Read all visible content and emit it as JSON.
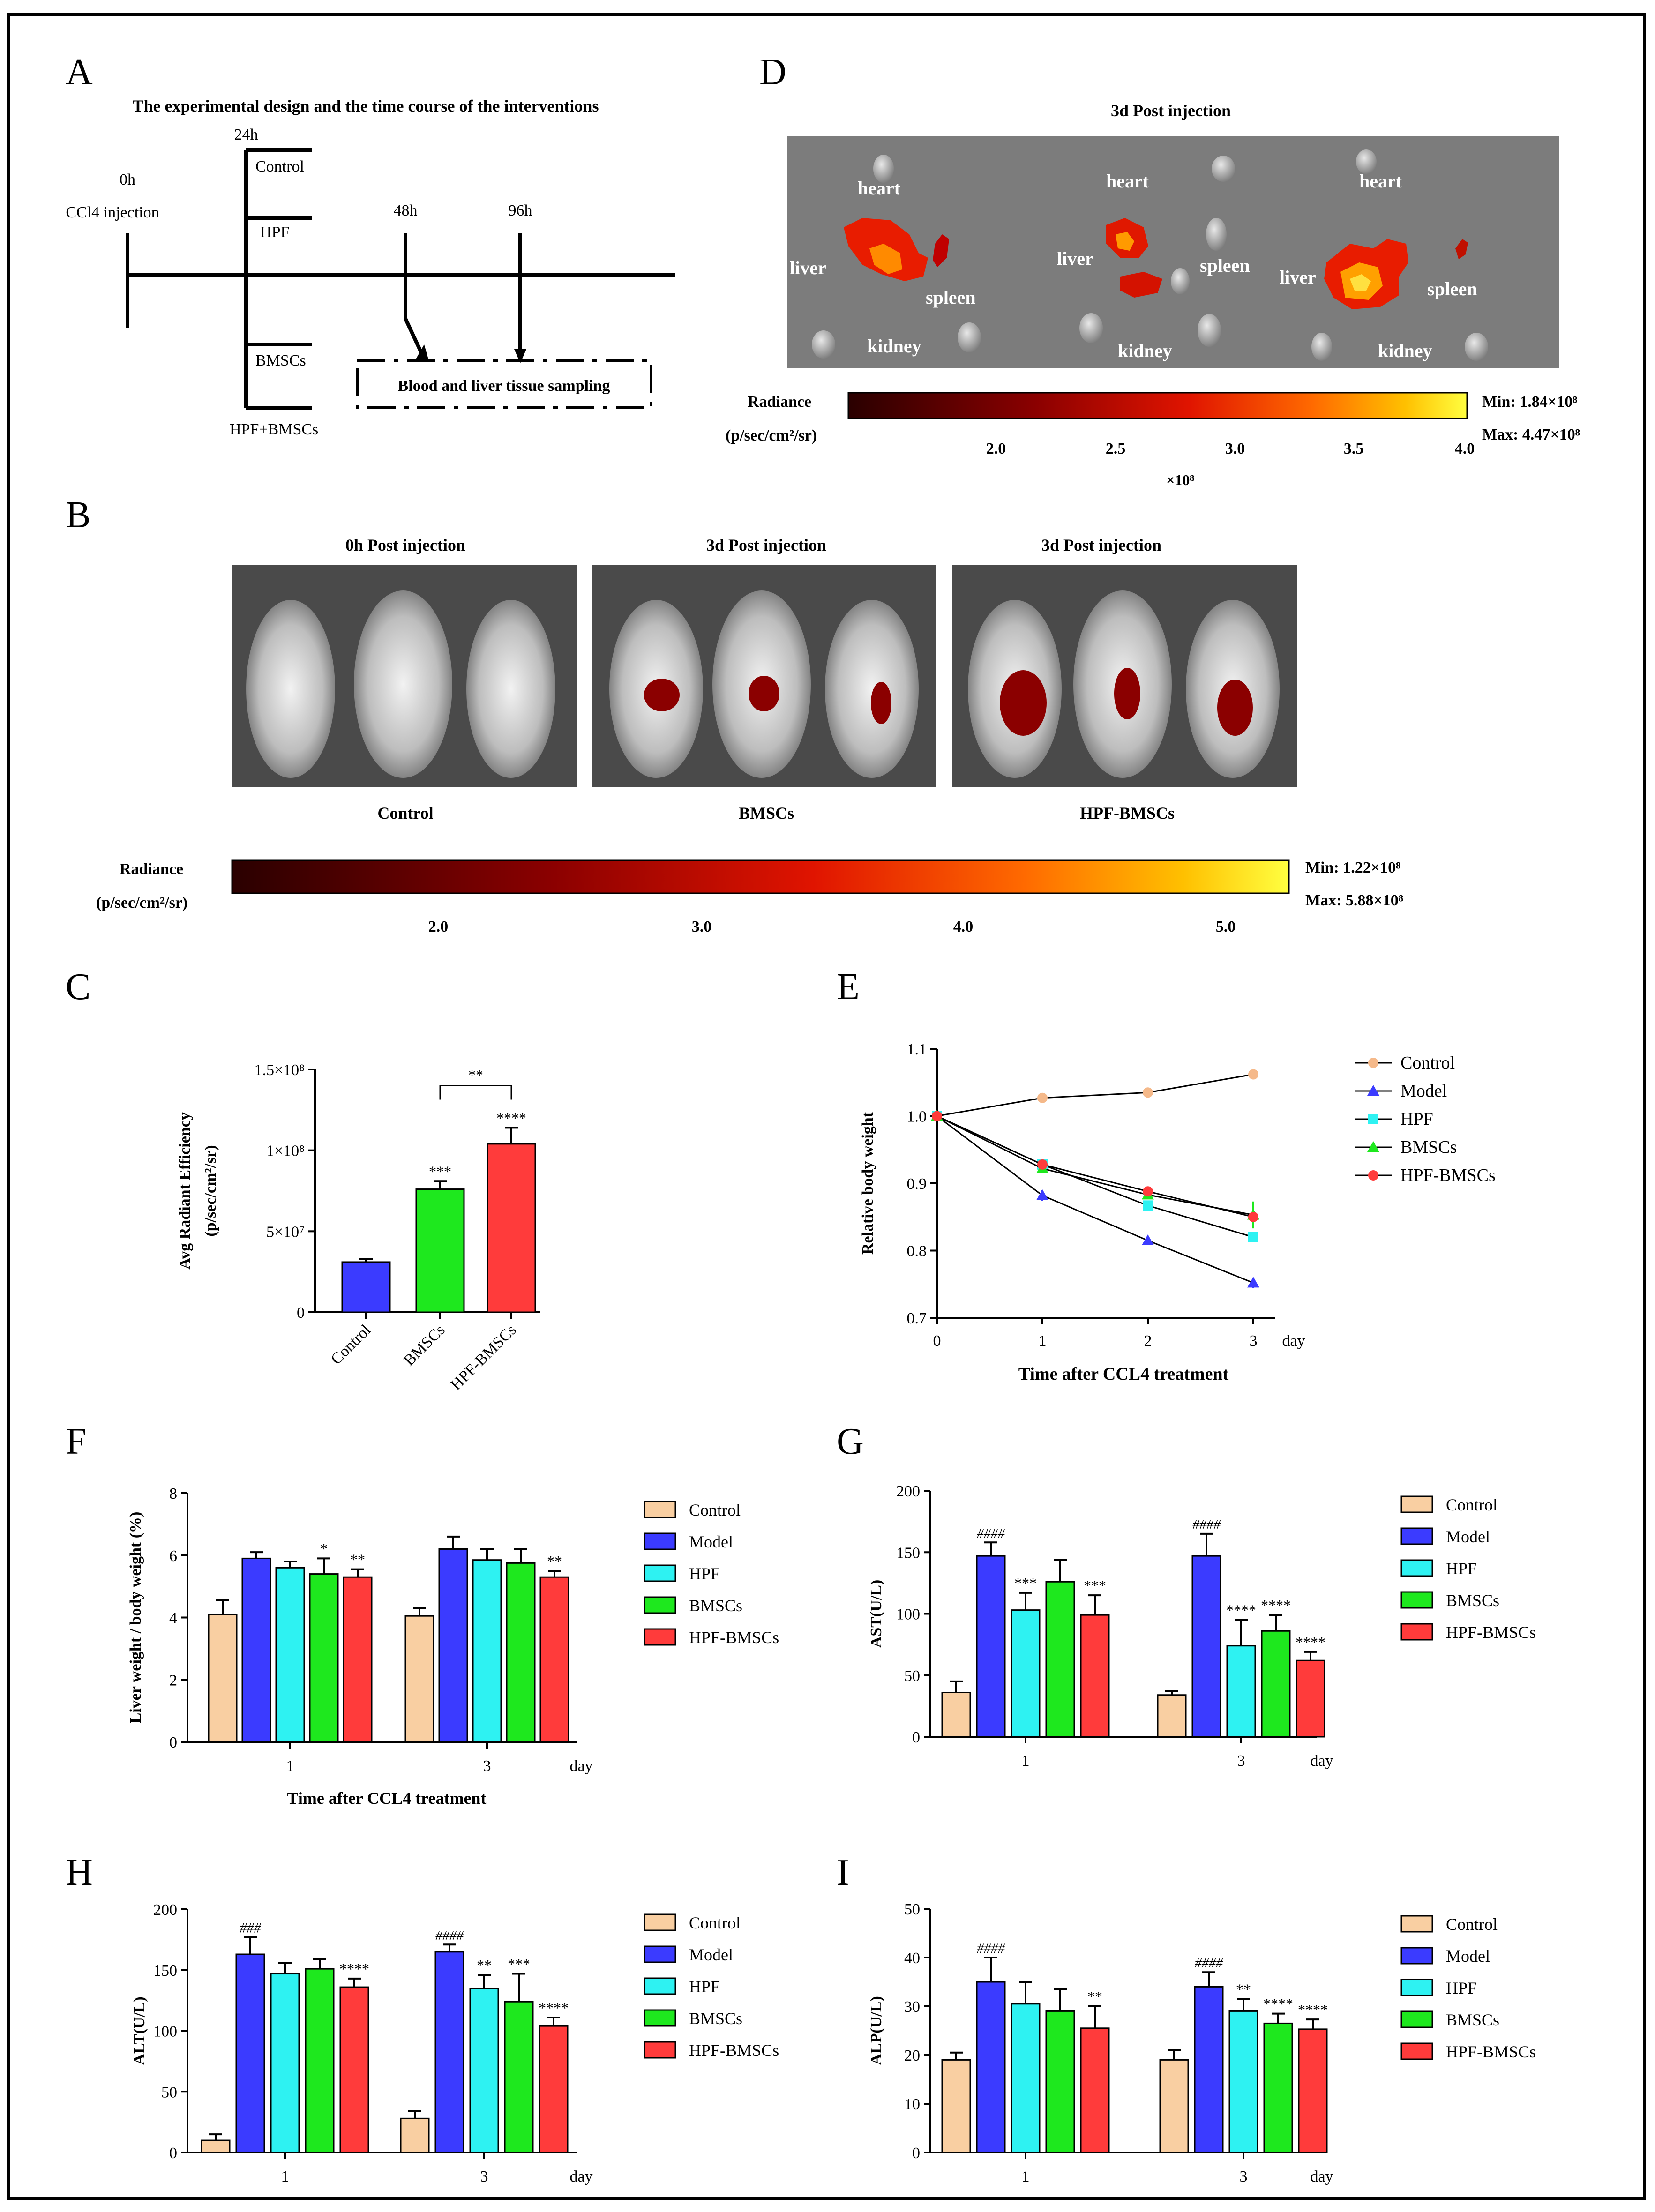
{
  "panels": {
    "A": {
      "letter": "A",
      "title": "The experimental design and the time course of the interventions",
      "t0": "0h",
      "ccl4": "CCl4 injection",
      "t24": "24h",
      "g_control": "Control",
      "g_hpf": "HPF",
      "g_bmscs": "BMSCs",
      "g_combo": "HPF+BMSCs",
      "t48": "48h",
      "t96": "96h",
      "sampling": "Blood and liver tissue sampling"
    },
    "B": {
      "letter": "B",
      "image_titles": [
        "0h Post injection",
        "3d Post injection",
        "3d Post injection"
      ],
      "group_labels": [
        "Control",
        "BMSCs",
        "HPF-BMSCs"
      ],
      "radiance": "Radiance",
      "unit": "(p/sec/cm²/sr)",
      "ticks": [
        "2.0",
        "3.0",
        "4.0",
        "5.0"
      ],
      "min": "Min: 1.22×10⁸",
      "max": "Max: 5.88×10⁸"
    },
    "C": {
      "letter": "C"
    },
    "D": {
      "letter": "D",
      "title": "3d Post injection",
      "organ_labels": [
        "heart",
        "heart",
        "heart",
        "liver",
        "liver",
        "liver",
        "spleen",
        "spleen",
        "spleen",
        "kidney",
        "kidney",
        "kidney"
      ],
      "radiance": "Radiance",
      "unit": "(p/sec/cm²/sr)",
      "ticks": [
        "2.0",
        "2.5",
        "3.0",
        "3.5",
        "4.0"
      ],
      "multiplier": "×10⁸",
      "min": "Min: 1.84×10⁸",
      "max": "Max: 4.47×10⁸"
    },
    "E": {
      "letter": "E"
    },
    "F": {
      "letter": "F"
    },
    "G": {
      "letter": "G"
    },
    "H": {
      "letter": "H"
    },
    "I": {
      "letter": "I"
    }
  },
  "colors": {
    "Control": "#f9cfa2",
    "Model": "#3b3bff",
    "HPF": "#2ef2f2",
    "BMSCs": "#1ee81e",
    "HPF-BMSCs": "#ff3b3b",
    "ControlLine": "#f5b98a"
  },
  "chart_data": [
    {
      "id": "C",
      "type": "bar",
      "ylabel": "Avg Radiant Efficiency\n(p/sec/cm²/sr)",
      "categories": [
        "Control",
        "BMSCs",
        "HPF-BMSCs"
      ],
      "values": [
        31000000,
        76000000,
        104000000
      ],
      "errors": [
        2000000,
        5000000,
        10000000
      ],
      "ylim": [
        0,
        150000000
      ],
      "yticks": [
        0,
        50000000,
        100000000,
        150000000
      ],
      "ytick_labels": [
        "0",
        "5×10⁷",
        "1×10⁸",
        "1.5×10⁸"
      ],
      "annotations": [
        "",
        "***",
        "****"
      ],
      "bracket": {
        "from": 1,
        "to": 2,
        "label": "**"
      }
    },
    {
      "id": "E",
      "type": "line",
      "xlabel": "Time after CCL4 treatment",
      "ylabel": "Relative body weight",
      "x": [
        0,
        1,
        2,
        3
      ],
      "xtick_suffix": "day",
      "ylim": [
        0.7,
        1.1
      ],
      "yticks": [
        "0.7",
        "0.8",
        "0.9",
        "1.0",
        "1.1"
      ],
      "series": [
        {
          "name": "Control",
          "values": [
            1.0,
            1.027,
            1.035,
            1.062
          ],
          "errors": [
            0,
            0.006,
            0.005,
            0.007
          ],
          "marker": "circle"
        },
        {
          "name": "Model",
          "values": [
            1.0,
            0.882,
            0.815,
            0.752
          ],
          "errors": [
            0,
            0.008,
            0.004,
            0.008
          ],
          "marker": "triangle-down"
        },
        {
          "name": "HPF",
          "values": [
            1.0,
            0.928,
            0.867,
            0.82
          ],
          "errors": [
            0,
            0.008,
            0.005,
            0.005
          ],
          "marker": "square"
        },
        {
          "name": "BMSCs",
          "values": [
            1.0,
            0.922,
            0.883,
            0.853
          ],
          "errors": [
            0,
            0.007,
            0.006,
            0.02
          ],
          "marker": "triangle"
        },
        {
          "name": "HPF-BMSCs",
          "values": [
            1.0,
            0.928,
            0.888,
            0.85
          ],
          "errors": [
            0,
            0.005,
            0.005,
            0.005
          ],
          "marker": "circle"
        }
      ]
    },
    {
      "id": "F",
      "type": "bar",
      "xlabel": "Time after CCL4 treatment",
      "ylabel": "Liver weight / body weight (%)",
      "groups": [
        "1",
        "3"
      ],
      "xtick_suffix": "day",
      "series_names": [
        "Control",
        "Model",
        "HPF",
        "BMSCs",
        "HPF-BMSCs"
      ],
      "values": [
        [
          4.1,
          5.9,
          5.6,
          5.4,
          5.3
        ],
        [
          4.05,
          6.2,
          5.85,
          5.75,
          5.3
        ]
      ],
      "errors": [
        [
          0.45,
          0.2,
          0.2,
          0.5,
          0.25
        ],
        [
          0.25,
          0.4,
          0.35,
          0.45,
          0.2
        ]
      ],
      "annotations": [
        [
          "",
          "",
          "",
          "*",
          "**"
        ],
        [
          "",
          "",
          "",
          "",
          "**"
        ]
      ],
      "ylim": [
        0,
        8
      ],
      "yticks": [
        "0",
        "2",
        "4",
        "6",
        "8"
      ]
    },
    {
      "id": "G",
      "type": "bar",
      "xlabel": "",
      "ylabel": "AST(U/L)",
      "groups": [
        "1",
        "3"
      ],
      "xtick_suffix": "day",
      "series_names": [
        "Control",
        "Model",
        "HPF",
        "BMSCs",
        "HPF-BMSCs"
      ],
      "values": [
        [
          36,
          147,
          103,
          126,
          99
        ],
        [
          34,
          147,
          74,
          86,
          62
        ]
      ],
      "errors": [
        [
          9,
          11,
          14,
          18,
          16
        ],
        [
          3,
          18,
          21,
          13,
          7
        ]
      ],
      "annotations": [
        [
          "",
          "####",
          "***",
          "",
          "***"
        ],
        [
          "",
          "####",
          "****",
          "****",
          "****"
        ]
      ],
      "ylim": [
        0,
        200
      ],
      "yticks": [
        "0",
        "50",
        "100",
        "150",
        "200"
      ]
    },
    {
      "id": "H",
      "type": "bar",
      "xlabel": "",
      "ylabel": "ALT(U/L)",
      "groups": [
        "1",
        "3"
      ],
      "xtick_suffix": "day",
      "series_names": [
        "Control",
        "Model",
        "HPF",
        "BMSCs",
        "HPF-BMSCs"
      ],
      "values": [
        [
          10,
          163,
          147,
          151,
          136
        ],
        [
          28,
          165,
          135,
          124,
          104
        ]
      ],
      "errors": [
        [
          5,
          14,
          9,
          8,
          7
        ],
        [
          6,
          6,
          11,
          23,
          7
        ]
      ],
      "annotations": [
        [
          "",
          "###",
          "",
          "",
          "****"
        ],
        [
          "",
          "####",
          "**",
          "***",
          "****"
        ]
      ],
      "ylim": [
        0,
        200
      ],
      "yticks": [
        "0",
        "50",
        "100",
        "150",
        "200"
      ]
    },
    {
      "id": "I",
      "type": "bar",
      "xlabel": "",
      "ylabel": "ALP(U/L)",
      "groups": [
        "1",
        "3"
      ],
      "xtick_suffix": "day",
      "series_names": [
        "Control",
        "Model",
        "HPF",
        "BMSCs",
        "HPF-BMSCs"
      ],
      "values": [
        [
          19,
          35,
          30.5,
          29,
          25.5
        ],
        [
          19,
          34,
          29,
          26.5,
          25.3
        ]
      ],
      "errors": [
        [
          1.5,
          5,
          4.5,
          4.5,
          4.5
        ],
        [
          2,
          3,
          2.5,
          2,
          2
        ]
      ],
      "annotations": [
        [
          "",
          "####",
          "",
          "",
          "**"
        ],
        [
          "",
          "####",
          "**",
          "****",
          "****"
        ]
      ],
      "ylim": [
        0,
        50
      ],
      "yticks": [
        "0",
        "10",
        "20",
        "30",
        "40",
        "50"
      ]
    }
  ]
}
